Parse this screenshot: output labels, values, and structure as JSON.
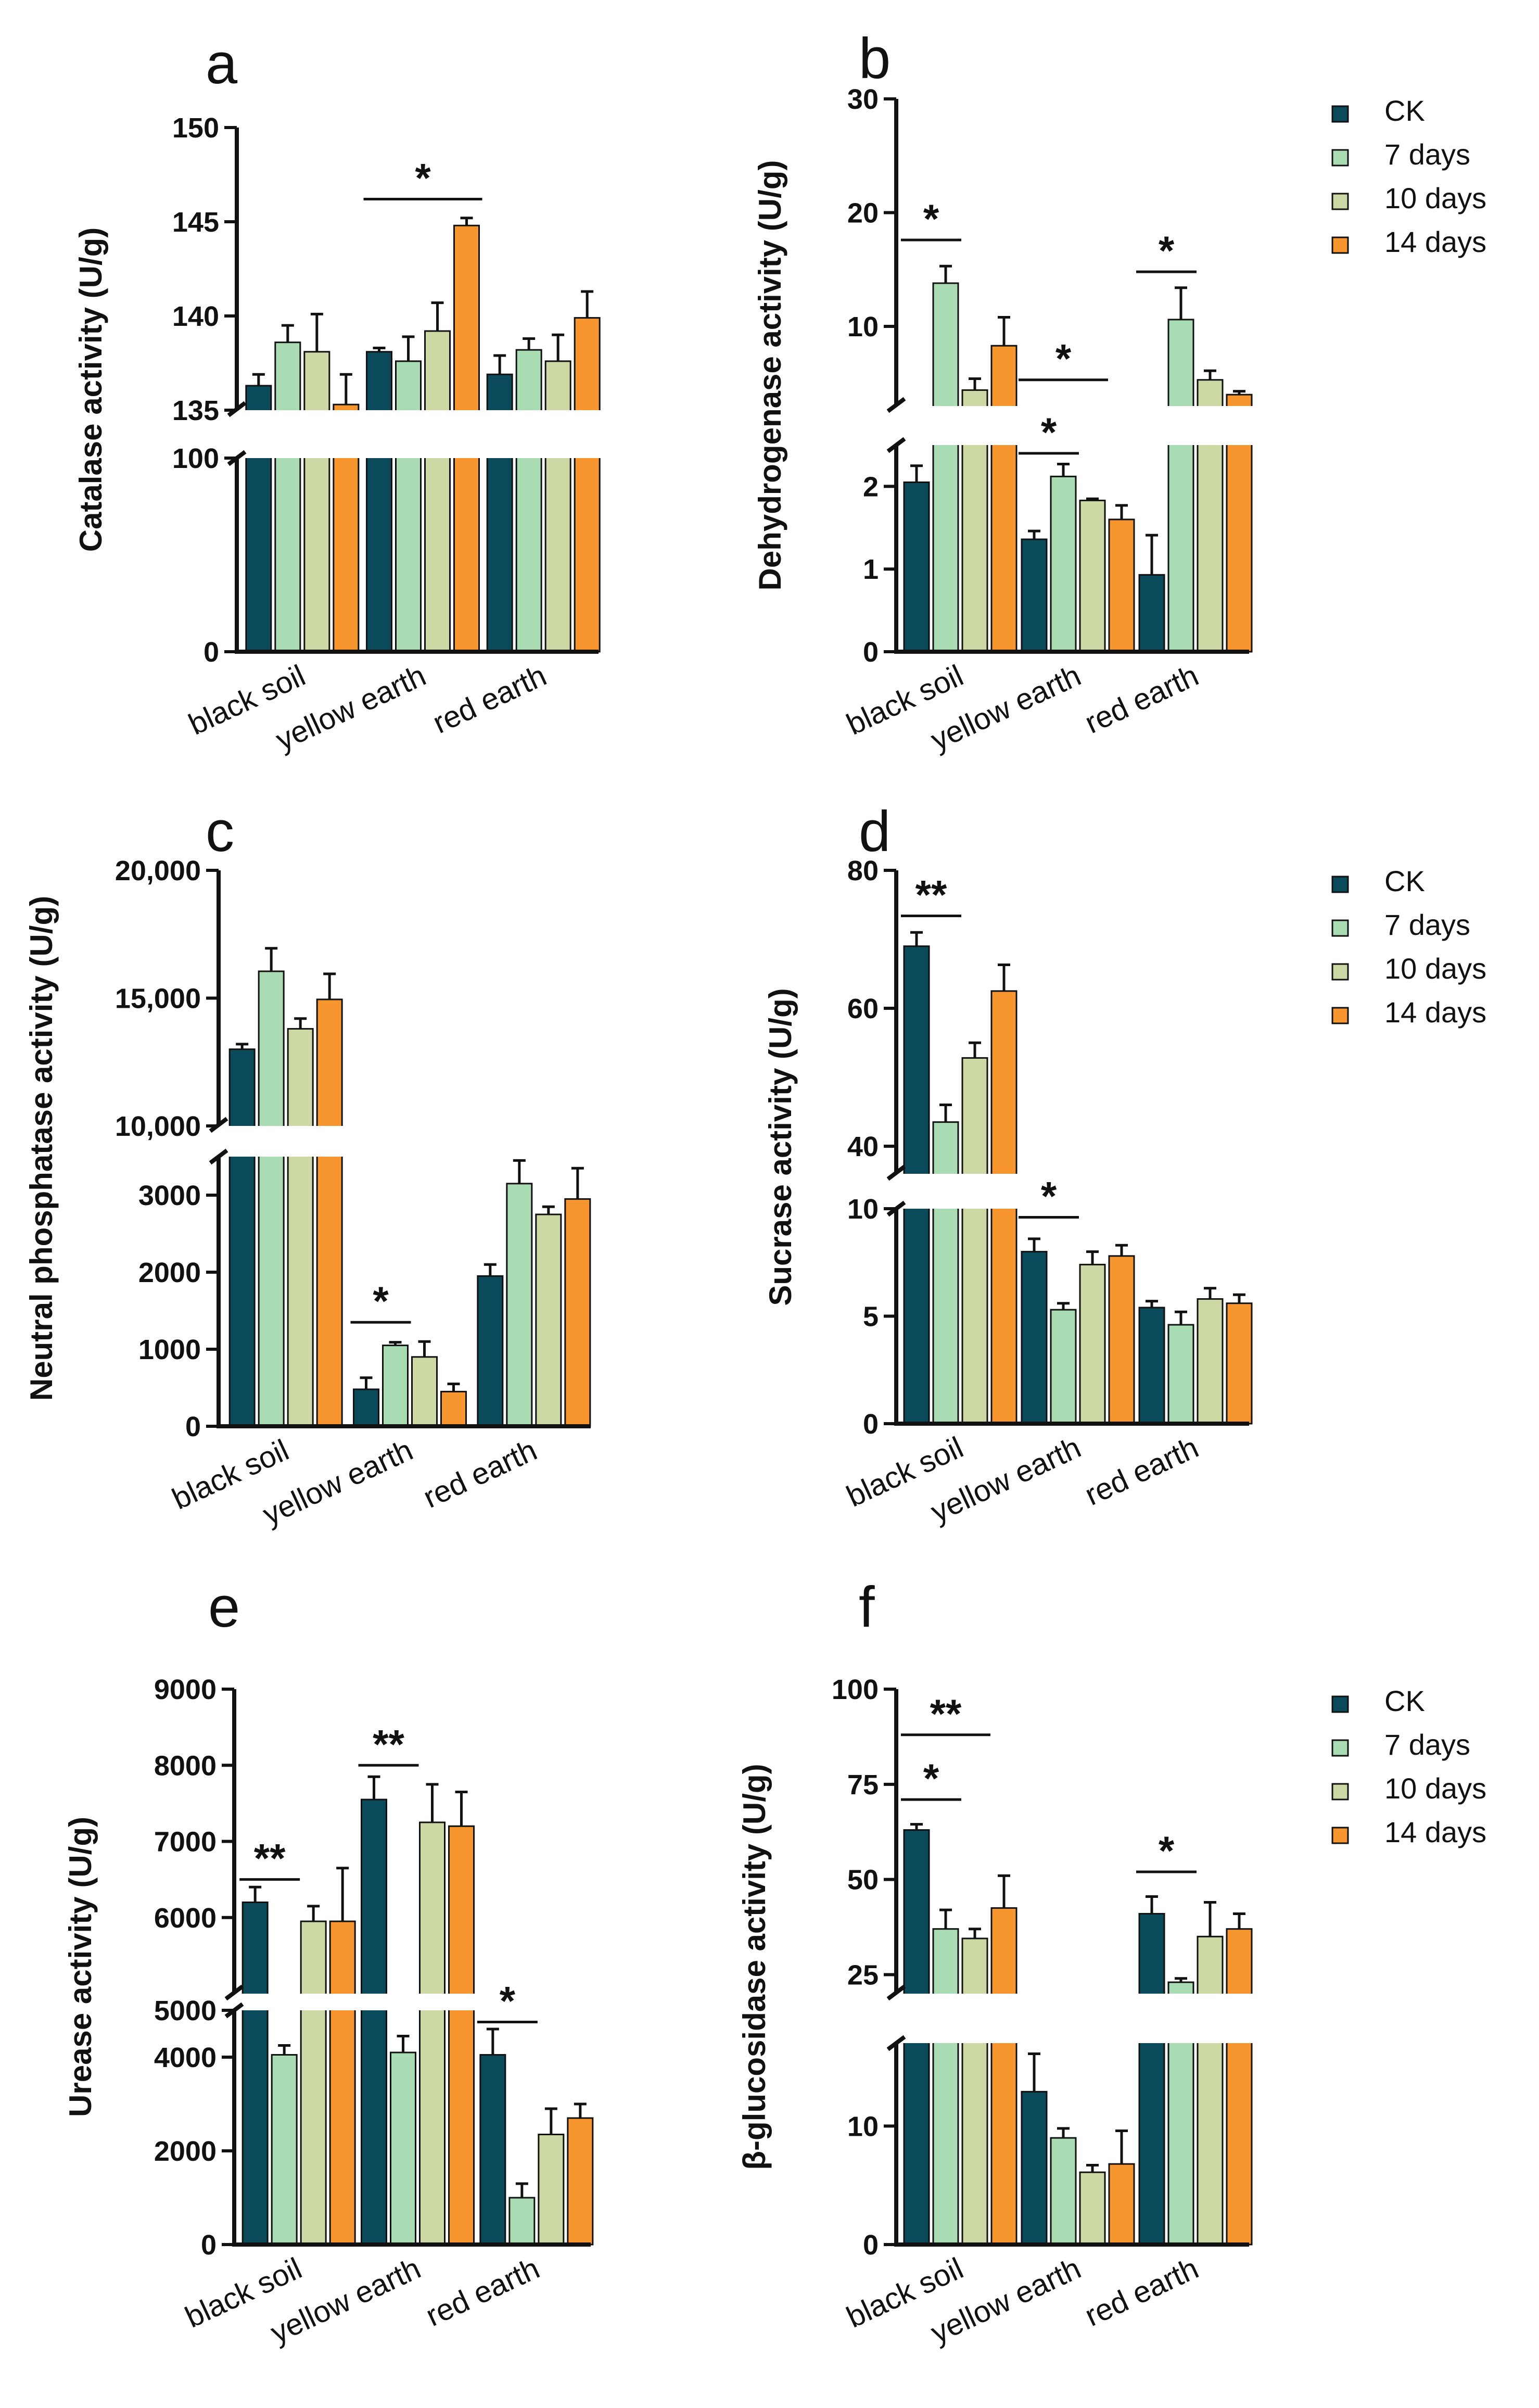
{
  "colors": {
    "CK": "#0b4a5a",
    "7 days": "#a9dcb2",
    "10 days": "#cdd9a5",
    "14 days": "#f7962e"
  },
  "legends": [
    {
      "items": [
        "CK",
        "7 days",
        "10 days",
        "14 days"
      ]
    },
    {
      "items": [
        "CK",
        "7 days",
        "10 days",
        "14 days"
      ]
    },
    {
      "items": [
        "CK",
        "7 days",
        "10 days",
        "14 days"
      ]
    }
  ],
  "chart_data": [
    {
      "panel": "a",
      "type": "bar",
      "ylabel": "Catalase activity (U/g)",
      "categories": [
        "black soil",
        "yellow earth",
        "red earth"
      ],
      "axis_break": {
        "lower": [
          0,
          100
        ],
        "upper": [
          135,
          150
        ]
      },
      "lower_ticks": [
        "0",
        "100"
      ],
      "upper_ticks": [
        "135",
        "140",
        "145",
        "150"
      ],
      "series": [
        {
          "name": "CK",
          "values": [
            136.3,
            138.1,
            136.9
          ],
          "errors": [
            0.6,
            0.2,
            1.0
          ]
        },
        {
          "name": "7 days",
          "values": [
            138.6,
            137.6,
            138.2
          ],
          "errors": [
            0.9,
            1.3,
            0.6
          ]
        },
        {
          "name": "10 days",
          "values": [
            138.1,
            139.2,
            137.6
          ],
          "errors": [
            2.0,
            1.5,
            1.4
          ]
        },
        {
          "name": "14 days",
          "values": [
            135.3,
            144.8,
            139.9
          ],
          "errors": [
            1.6,
            0.4,
            1.4
          ]
        }
      ],
      "significance": [
        {
          "label": "*",
          "category": 1,
          "from": 0,
          "to": 3,
          "y": 146.2
        }
      ]
    },
    {
      "panel": "b",
      "type": "bar",
      "ylabel": "Dehydrogenase activity (U/g)",
      "categories": [
        "black soil",
        "yellow earth",
        "red earth"
      ],
      "axis_break": {
        "lower": [
          0,
          2.5
        ],
        "upper": [
          3,
          30
        ]
      },
      "lower_ticks": [
        "0",
        "1",
        "2"
      ],
      "upper_ticks": [
        "10",
        "20",
        "30"
      ],
      "series": [
        {
          "name": "CK",
          "values": [
            2.05,
            1.36,
            0.93
          ],
          "errors": [
            0.2,
            0.1,
            0.48
          ]
        },
        {
          "name": "7 days",
          "values": [
            13.8,
            2.12,
            10.6
          ],
          "errors": [
            1.5,
            0.15,
            2.8
          ]
        },
        {
          "name": "10 days",
          "values": [
            4.4,
            1.83,
            5.3
          ],
          "errors": [
            1.0,
            0.02,
            0.8
          ]
        },
        {
          "name": "14 days",
          "values": [
            8.3,
            1.6,
            4.0
          ],
          "errors": [
            2.5,
            0.17,
            0.3
          ]
        }
      ],
      "significance": [
        {
          "label": "*",
          "category": 0,
          "from": 0,
          "to": 1,
          "y": 17.6
        },
        {
          "label": "*",
          "category": 1,
          "from": 0,
          "to": 2,
          "y": 5.3
        },
        {
          "label": "*",
          "category": 1,
          "from": 0,
          "to": 1,
          "y": 2.4
        },
        {
          "label": "*",
          "category": 2,
          "from": 0,
          "to": 1,
          "y": 14.8
        }
      ]
    },
    {
      "panel": "c",
      "type": "bar",
      "ylabel": "Neutral phosphatase activity (U/g)",
      "categories": [
        "black soil",
        "yellow earth",
        "red earth"
      ],
      "axis_break": {
        "lower": [
          0,
          3500
        ],
        "upper": [
          10000,
          20000
        ]
      },
      "lower_ticks": [
        "0",
        "1000",
        "2000",
        "3000"
      ],
      "upper_ticks": [
        "10,000",
        "15,000",
        "20,000"
      ],
      "series": [
        {
          "name": "CK",
          "values": [
            13000,
            480,
            1950
          ],
          "errors": [
            200,
            150,
            150
          ]
        },
        {
          "name": "7 days",
          "values": [
            16050,
            1050,
            3150
          ],
          "errors": [
            900,
            40,
            300
          ]
        },
        {
          "name": "10 days",
          "values": [
            13800,
            900,
            2750
          ],
          "errors": [
            400,
            200,
            100
          ]
        },
        {
          "name": "14 days",
          "values": [
            14950,
            450,
            2950
          ],
          "errors": [
            1000,
            100,
            400
          ]
        }
      ],
      "significance": [
        {
          "label": "*",
          "category": 1,
          "from": 0,
          "to": 1,
          "y": 1350
        }
      ]
    },
    {
      "panel": "d",
      "type": "bar",
      "ylabel": "Sucrase activity (U/g)",
      "categories": [
        "black soil",
        "yellow earth",
        "red earth"
      ],
      "axis_break": {
        "lower": [
          0,
          10
        ],
        "upper": [
          36,
          80
        ]
      },
      "lower_ticks": [
        "0",
        "5",
        "10"
      ],
      "upper_ticks": [
        "40",
        "60",
        "80"
      ],
      "series": [
        {
          "name": "CK",
          "values": [
            69,
            8.0,
            5.4
          ],
          "errors": [
            2.0,
            0.6,
            0.3
          ]
        },
        {
          "name": "7 days",
          "values": [
            43.5,
            5.3,
            4.6
          ],
          "errors": [
            2.5,
            0.3,
            0.6
          ]
        },
        {
          "name": "10 days",
          "values": [
            52.8,
            7.4,
            5.8
          ],
          "errors": [
            2.2,
            0.6,
            0.5
          ]
        },
        {
          "name": "14 days",
          "values": [
            62.5,
            7.8,
            5.6
          ],
          "errors": [
            3.8,
            0.5,
            0.4
          ]
        }
      ],
      "significance": [
        {
          "label": "**",
          "category": 0,
          "from": 0,
          "to": 1,
          "y": 73.4
        },
        {
          "label": "*",
          "category": 1,
          "from": 0,
          "to": 1,
          "y": 9.6
        }
      ]
    },
    {
      "panel": "e",
      "type": "bar",
      "ylabel": "Urease activity (U/g)",
      "categories": [
        "black soil",
        "yellow earth",
        "red earth"
      ],
      "axis_break": {
        "lower": [
          0,
          5000
        ],
        "upper": [
          5000,
          9000
        ]
      },
      "lower_ticks": [
        "0",
        "2000",
        "4000"
      ],
      "upper_ticks": [
        "5000",
        "6000",
        "7000",
        "8000",
        "9000"
      ],
      "series": [
        {
          "name": "CK",
          "values": [
            6200,
            7550,
            4050
          ],
          "errors": [
            200,
            300,
            550
          ]
        },
        {
          "name": "7 days",
          "values": [
            4050,
            4100,
            1000
          ],
          "errors": [
            200,
            350,
            300
          ]
        },
        {
          "name": "10 days",
          "values": [
            5950,
            7250,
            2350
          ],
          "errors": [
            200,
            500,
            550
          ]
        },
        {
          "name": "14 days",
          "values": [
            5950,
            7200,
            2700
          ],
          "errors": [
            700,
            450,
            300
          ]
        }
      ],
      "significance": [
        {
          "label": "**",
          "category": 0,
          "from": 0,
          "to": 1,
          "y": 6500
        },
        {
          "label": "**",
          "category": 1,
          "from": 0,
          "to": 1,
          "y": 8000
        },
        {
          "label": "*",
          "category": 2,
          "from": 0,
          "to": 1,
          "y": 4750
        }
      ]
    },
    {
      "panel": "f",
      "type": "bar",
      "ylabel": "β-glucosidase  activity (U/g)",
      "categories": [
        "black soil",
        "yellow earth",
        "red earth"
      ],
      "axis_break": {
        "lower": [
          0,
          17
        ],
        "upper": [
          20,
          100
        ]
      },
      "lower_ticks": [
        "0",
        "10"
      ],
      "upper_ticks": [
        "25",
        "50",
        "75",
        "100"
      ],
      "series": [
        {
          "name": "CK",
          "values": [
            63,
            12.9,
            41
          ],
          "errors": [
            1.5,
            3.2,
            4.5
          ]
        },
        {
          "name": "7 days",
          "values": [
            37,
            9.0,
            23
          ],
          "errors": [
            5.0,
            0.8,
            1.0
          ]
        },
        {
          "name": "10 days",
          "values": [
            34.5,
            6.1,
            35
          ],
          "errors": [
            2.5,
            0.6,
            9.0
          ]
        },
        {
          "name": "14 days",
          "values": [
            42.5,
            6.8,
            37
          ],
          "errors": [
            8.5,
            2.8,
            4.0
          ]
        }
      ],
      "significance": [
        {
          "label": "**",
          "category": 0,
          "from": 0,
          "to": 2,
          "y": 88
        },
        {
          "label": "*",
          "category": 0,
          "from": 0,
          "to": 1,
          "y": 71
        },
        {
          "label": "*",
          "category": 2,
          "from": 0,
          "to": 1,
          "y": 52
        }
      ]
    }
  ]
}
